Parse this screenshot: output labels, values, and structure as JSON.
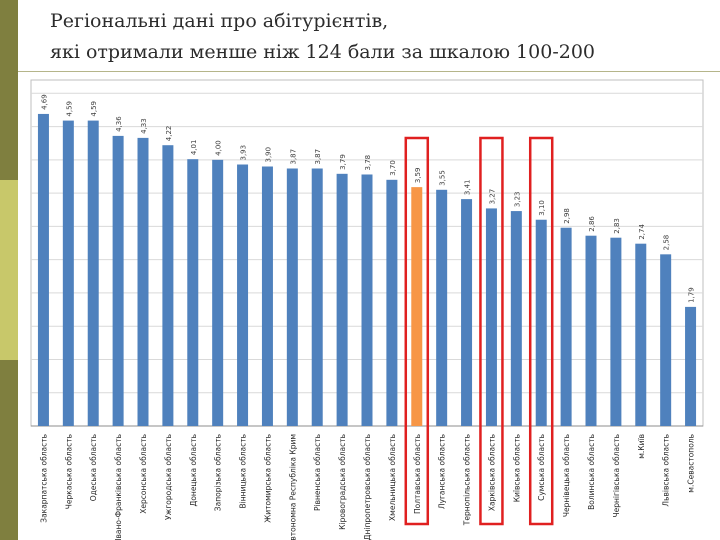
{
  "slide": {
    "title_line1": "Регіональні дані про абітурієнтів,",
    "title_line2": "які отримали менше ніж 124 бали за шкалою 100-200"
  },
  "colors": {
    "bar": "#4f81bd",
    "highlight_bar": "#f79646",
    "frame": "#e02020",
    "grid": "#bfbfbf"
  },
  "chart_data": {
    "type": "bar",
    "title": "",
    "xlabel": "",
    "ylabel": "",
    "ylim": [
      0,
      5.2
    ],
    "categories": [
      "Закарпатська область",
      "Черкаська область",
      "Одеська область",
      "Івано-Франківська область",
      "Херсонська область",
      "Ужгородська область",
      "Донецька область",
      "Запорізька область",
      "Вінницька область",
      "Житомирська область",
      "Автономна Республіка Крим",
      "Рівненська область",
      "Кіровоградська область",
      "Дніпропетровська область",
      "Хмельницька область",
      "Полтавська область",
      "Луганська область",
      "Тернопільська область",
      "Харківська область",
      "Київська область",
      "Сумська область",
      "Чернівецька область",
      "Волинська область",
      "Чернігівська область",
      "м.Київ",
      "Львівська область",
      "м.Севастополь"
    ],
    "values": [
      4.69,
      4.59,
      4.59,
      4.36,
      4.33,
      4.22,
      4.01,
      4.0,
      3.93,
      3.9,
      3.87,
      3.87,
      3.79,
      3.78,
      3.7,
      3.59,
      3.55,
      3.41,
      3.27,
      3.23,
      3.1,
      2.98,
      2.86,
      2.83,
      2.74,
      2.58,
      1.79
    ],
    "value_labels": [
      "4,69",
      "4,59",
      "4,59",
      "4,36",
      "4,33",
      "4,22",
      "4,01",
      "4,00",
      "3,93",
      "3,90",
      "3,87",
      "3,87",
      "3,79",
      "3,78",
      "3,70",
      "3,59",
      "3,55",
      "3,41",
      "3,27",
      "3,23",
      "3,10",
      "2,98",
      "2,86",
      "2,83",
      "2,74",
      "2,58",
      "1,79"
    ],
    "highlighted": [
      "Полтавська область"
    ],
    "framed": [
      "Полтавська область",
      "Харківська область",
      "Сумська область"
    ],
    "grid": true,
    "legend": "none"
  }
}
